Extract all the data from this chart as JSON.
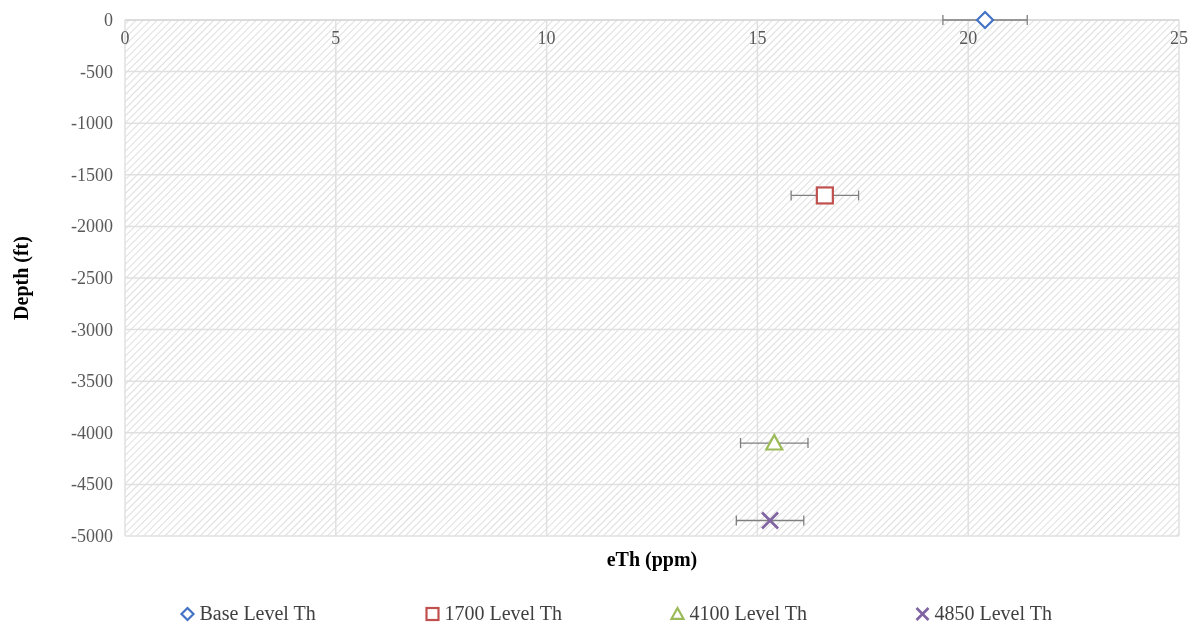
{
  "chart_data": {
    "type": "scatter",
    "xlabel": "eTh (ppm)",
    "ylabel": "Depth (ft)",
    "xlim": [
      0,
      25
    ],
    "xticks": [
      0,
      5,
      10,
      15,
      20,
      25
    ],
    "ylim": [
      -5000,
      0
    ],
    "yticks": [
      -5000,
      -4500,
      -4000,
      -3500,
      -3000,
      -2500,
      -2000,
      -1500,
      -1000,
      -500,
      0
    ],
    "grid": true,
    "legend": "bottom",
    "series": [
      {
        "name": "Base Level Th",
        "color": "#4472c4",
        "marker": "diamond",
        "x": [
          20.4
        ],
        "values": [
          0
        ],
        "xerrors": [
          1.0
        ]
      },
      {
        "name": "1700 Level Th",
        "color": "#c0504d",
        "marker": "square",
        "x": [
          16.6
        ],
        "values": [
          -1700
        ],
        "xerrors": [
          0.8
        ]
      },
      {
        "name": "4100 Level Th",
        "color": "#9bbb59",
        "marker": "triangle",
        "x": [
          15.4
        ],
        "values": [
          -4100
        ],
        "xerrors": [
          0.8
        ]
      },
      {
        "name": "4850 Level Th",
        "color": "#8064a2",
        "marker": "cross",
        "x": [
          15.3
        ],
        "values": [
          -4850
        ],
        "xerrors": [
          0.8
        ]
      }
    ]
  }
}
